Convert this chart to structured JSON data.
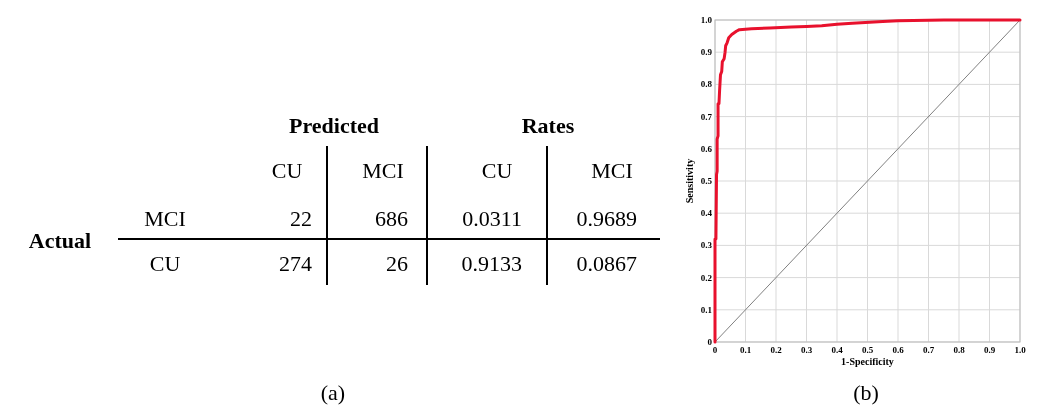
{
  "chart_data": [
    {
      "type": "other",
      "categories": [
        "CU",
        "MCI",
        "CU",
        "MCI"
      ],
      "y_categories": [
        "MCI",
        "CU"
      ],
      "annotations": [
        "Predicted",
        "Rates",
        "Actual",
        "(a)",
        "22",
        "686",
        "0.0311",
        "0.9689",
        "274",
        "26",
        "0.9133",
        "0.0867"
      ]
    },
    {
      "type": "line",
      "xlabel": "1-Specificity",
      "ylabel": "Sensitivity",
      "xlim": [
        0,
        1
      ],
      "ylim": [
        0,
        1
      ],
      "xticks": [
        0,
        0.1,
        0.2,
        0.3,
        0.4,
        0.5,
        0.6,
        0.7,
        0.8,
        0.9,
        {
          "value": 1,
          "label": "1.0"
        }
      ],
      "yticks": [
        0,
        0.1,
        0.2,
        0.3,
        0.4,
        0.5,
        0.6,
        0.7,
        0.8,
        0.9,
        {
          "value": 1,
          "label": "1.0"
        }
      ],
      "grid": true,
      "annotations": [
        "(b)"
      ],
      "series": [
        {
          "color": "#808080",
          "x": [
            0,
            1
          ],
          "values": [
            0,
            1
          ]
        },
        {
          "color": "#e8112d",
          "x": [
            0,
            0,
            0.003,
            0.005,
            0.007,
            0.007,
            0.01,
            0.01,
            0.013,
            0.015,
            0.018,
            0.022,
            0.024,
            0.03,
            0.033,
            0.035,
            0.04,
            0.045,
            0.055,
            0.07,
            0.08,
            0.12,
            0.18,
            0.25,
            0.3,
            0.35,
            0.4,
            0.45,
            0.55,
            0.6,
            0.75,
            1
          ],
          "values": [
            0,
            0.32,
            0.32,
            0.52,
            0.53,
            0.63,
            0.64,
            0.74,
            0.74,
            0.78,
            0.83,
            0.84,
            0.87,
            0.88,
            0.9,
            0.92,
            0.93,
            0.945,
            0.955,
            0.965,
            0.97,
            0.973,
            0.975,
            0.978,
            0.98,
            0.982,
            0.987,
            0.99,
            0.995,
            0.998,
            1,
            1
          ]
        }
      ]
    }
  ]
}
